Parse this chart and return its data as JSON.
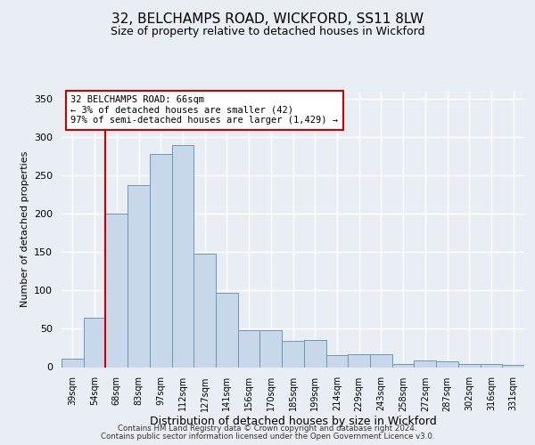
{
  "title1": "32, BELCHAMPS ROAD, WICKFORD, SS11 8LW",
  "title2": "Size of property relative to detached houses in Wickford",
  "xlabel": "Distribution of detached houses by size in Wickford",
  "ylabel": "Number of detached properties",
  "categories": [
    "39sqm",
    "54sqm",
    "68sqm",
    "83sqm",
    "97sqm",
    "112sqm",
    "127sqm",
    "141sqm",
    "156sqm",
    "170sqm",
    "185sqm",
    "199sqm",
    "214sqm",
    "229sqm",
    "243sqm",
    "258sqm",
    "272sqm",
    "287sqm",
    "302sqm",
    "316sqm",
    "331sqm"
  ],
  "values": [
    11,
    65,
    200,
    238,
    278,
    290,
    148,
    97,
    48,
    48,
    34,
    35,
    16,
    17,
    17,
    4,
    9,
    8,
    4,
    4,
    3
  ],
  "bar_color": "#c8d8ea",
  "bar_edge_color": "#6699bb",
  "vline_color": "#cc0000",
  "annotation_text": "32 BELCHAMPS ROAD: 66sqm\n← 3% of detached houses are smaller (42)\n97% of semi-detached houses are larger (1,429) →",
  "annotation_box_color": "#ffffff",
  "annotation_box_edge": "#cc0000",
  "footer1": "Contains HM Land Registry data © Crown copyright and database right 2024.",
  "footer2": "Contains public sector information licensed under the Open Government Licence v3.0.",
  "ylim": [
    0,
    360
  ],
  "yticks": [
    0,
    50,
    100,
    150,
    200,
    250,
    300,
    350
  ],
  "bg_color": "#e8eef4",
  "plot_bg_color": "#e8eef4",
  "grid_color": "#ffffff"
}
